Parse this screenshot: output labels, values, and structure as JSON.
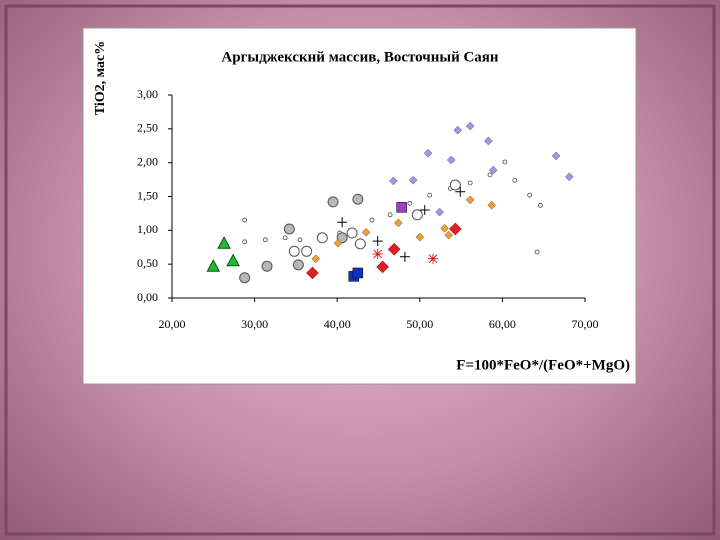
{
  "chart_data": {
    "type": "scatter",
    "title": "Аргыджекскнй массив, Восточный Саян",
    "y_label": "TiO2, мас%",
    "x_label": "F=100*FeO*/(FeO*+MgO)",
    "xlim": [
      20,
      70
    ],
    "ylim": [
      0,
      3
    ],
    "xticks": [
      {
        "value": 20,
        "label": "20,00"
      },
      {
        "value": 30,
        "label": "30,00"
      },
      {
        "value": 40,
        "label": "40,00"
      },
      {
        "value": 50,
        "label": "50,00"
      },
      {
        "value": 60,
        "label": "60,00"
      },
      {
        "value": 70,
        "label": "70,00"
      }
    ],
    "yticks": [
      {
        "value": 0,
        "label": "0,00"
      },
      {
        "value": 0.5,
        "label": "0,50"
      },
      {
        "value": 1,
        "label": "1,00"
      },
      {
        "value": 1.5,
        "label": "1,50"
      },
      {
        "value": 2,
        "label": "2,00"
      },
      {
        "value": 2.5,
        "label": "2,50"
      },
      {
        "value": 3,
        "label": "3,00"
      }
    ],
    "series": [
      {
        "marker": "small-circle",
        "color": "#ffffff",
        "x": [
          28.8,
          31.3,
          33.7,
          35.5,
          37.9,
          40.3,
          44.2,
          46.4,
          48.8,
          51.2,
          53.7,
          56.1,
          58.5,
          60.3,
          61.5,
          63.3,
          64.6,
          28.8,
          64.2
        ],
        "y": [
          0.83,
          0.86,
          0.89,
          0.86,
          0.92,
          0.96,
          1.15,
          1.23,
          1.4,
          1.52,
          1.62,
          1.7,
          1.82,
          2.01,
          1.74,
          1.52,
          1.37,
          1.15,
          0.68
        ]
      },
      {
        "marker": "triangle",
        "color": "#22bb33",
        "x": [
          25.0,
          26.3,
          27.4
        ],
        "y": [
          0.47,
          0.81,
          0.55
        ]
      },
      {
        "marker": "circle",
        "color": "#b8b8b8",
        "x": [
          28.8,
          31.5,
          34.2,
          35.3,
          39.5,
          42.5,
          40.6
        ],
        "y": [
          0.3,
          0.47,
          1.02,
          0.49,
          1.42,
          1.46,
          0.89
        ]
      },
      {
        "marker": "circle",
        "color": "#ffffff",
        "x": [
          34.8,
          36.3,
          38.2,
          41.8,
          42.8,
          49.7,
          54.3
        ],
        "y": [
          0.69,
          0.69,
          0.89,
          0.96,
          0.8,
          1.23,
          1.67
        ]
      },
      {
        "marker": "diamond",
        "color": "#9999ee",
        "x": [
          54.6,
          56.1,
          58.3,
          51.0,
          53.8,
          66.5,
          68.1,
          46.8,
          49.2,
          52.4,
          58.9
        ],
        "y": [
          2.48,
          2.54,
          2.32,
          2.14,
          2.04,
          2.1,
          1.79,
          1.73,
          1.74,
          1.27,
          1.89
        ]
      },
      {
        "marker": "diamond",
        "color": "#f0a030",
        "x": [
          40.1,
          47.4,
          50.0,
          53.0,
          53.5,
          56.1,
          58.7,
          37.4,
          43.5
        ],
        "y": [
          0.81,
          1.11,
          0.9,
          1.03,
          0.93,
          1.45,
          1.37,
          0.58,
          0.97
        ]
      },
      {
        "marker": "big-diamond",
        "color": "#e02020",
        "x": [
          37.0,
          45.5,
          46.9,
          54.3
        ],
        "y": [
          0.37,
          0.46,
          0.72,
          1.02
        ]
      },
      {
        "marker": "square",
        "color": "#1030c0",
        "x": [
          42.0,
          42.5
        ],
        "y": [
          0.32,
          0.37
        ]
      },
      {
        "marker": "square",
        "color": "#a040c0",
        "x": [
          47.8
        ],
        "y": [
          1.34
        ]
      },
      {
        "marker": "plus",
        "color": "#000000",
        "x": [
          40.6,
          44.9,
          48.2,
          50.6,
          54.9
        ],
        "y": [
          1.12,
          0.84,
          0.61,
          1.3,
          1.57
        ]
      },
      {
        "marker": "asterisk",
        "color": "#e02020",
        "x": [
          44.9,
          51.6
        ],
        "y": [
          0.65,
          0.58
        ]
      }
    ]
  }
}
